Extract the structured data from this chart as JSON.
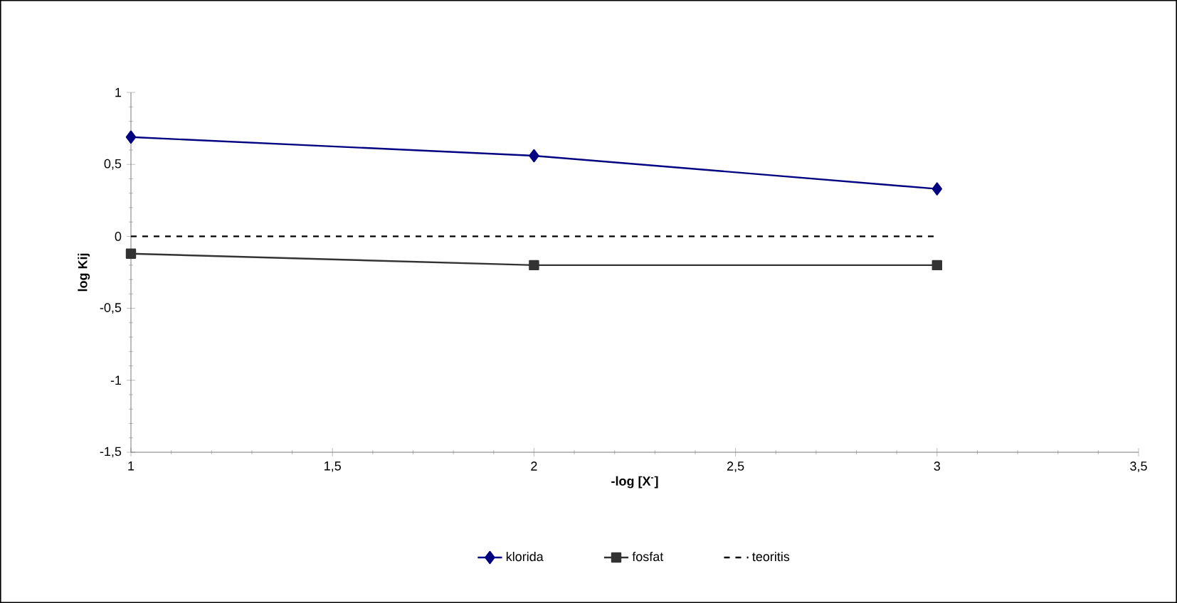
{
  "chart_data": {
    "type": "line",
    "xlabel": "-log [X$^{-}$]",
    "ylabel": "log Kij",
    "x": [
      1,
      2,
      3
    ],
    "series": [
      {
        "name": "klorida",
        "color": "#000080",
        "values": [
          0.69,
          0.56,
          0.33
        ],
        "marker": "diamond",
        "line_style": "solid"
      },
      {
        "name": "fosfat",
        "color": "#333333",
        "values": [
          -0.12,
          -0.2,
          -0.2
        ],
        "marker": "square",
        "line_style": "solid"
      },
      {
        "name": "teoritis",
        "color": "#000000",
        "values": [
          0,
          0,
          0
        ],
        "marker": "none",
        "line_style": "dashed"
      }
    ],
    "xlim": [
      1,
      3.5
    ],
    "xticks": [
      1,
      {
        "value": 1.5,
        "label": "1,5"
      },
      2,
      {
        "value": 2.5,
        "label": "2,5"
      },
      3,
      {
        "value": 3.5,
        "label": "3,5"
      }
    ],
    "ylim": [
      -1.5,
      1
    ],
    "yticks": [
      {
        "value": -1.5,
        "label": "-1,5"
      },
      -1,
      {
        "value": -0.5,
        "label": "-0,5"
      },
      0,
      {
        "value": 0.5,
        "label": "0,5"
      },
      1
    ],
    "grid": false,
    "legend": "bottom"
  }
}
